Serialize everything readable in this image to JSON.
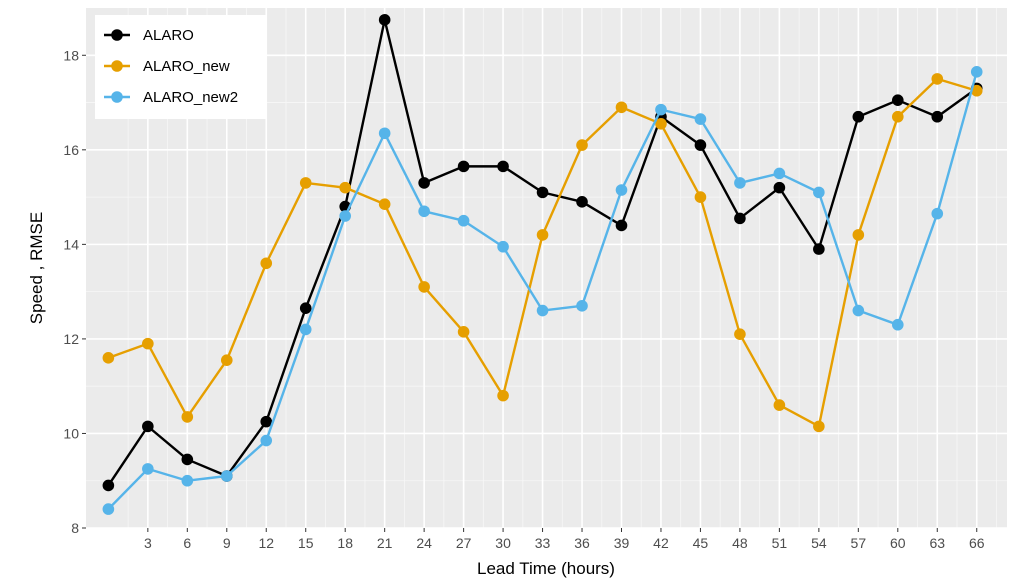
{
  "chart_data": {
    "type": "line",
    "xlabel": "Lead Time (hours)",
    "ylabel": "Speed , RMSE",
    "x_ticks": [
      "3",
      "6",
      "9",
      "12",
      "15",
      "18",
      "21",
      "24",
      "27",
      "30",
      "33",
      "36",
      "39",
      "42",
      "45",
      "48",
      "51",
      "54",
      "57",
      "60",
      "63",
      "66"
    ],
    "y_ticks": [
      8,
      10,
      12,
      14,
      16,
      18
    ],
    "ylim": [
      8,
      19
    ],
    "xlim": [
      -1.7,
      68.3
    ],
    "grid": true,
    "legend_position": "top-left",
    "x": [
      0,
      3,
      6,
      9,
      12,
      15,
      18,
      21,
      24,
      27,
      30,
      33,
      36,
      39,
      42,
      45,
      48,
      51,
      54,
      57,
      60,
      63,
      66
    ],
    "series": [
      {
        "name": "ALARO",
        "color": "#000000",
        "values": [
          8.9,
          10.15,
          9.45,
          9.1,
          10.25,
          12.65,
          14.8,
          18.75,
          15.3,
          15.65,
          15.65,
          15.1,
          14.9,
          14.4,
          16.7,
          16.1,
          14.55,
          15.2,
          13.9,
          16.7,
          17.05,
          16.7,
          17.3
        ]
      },
      {
        "name": "ALARO_new",
        "color": "#E69F00",
        "values": [
          11.6,
          11.9,
          10.35,
          11.55,
          13.6,
          15.3,
          15.2,
          14.85,
          13.1,
          12.15,
          10.8,
          14.2,
          16.1,
          16.9,
          16.55,
          15.0,
          12.1,
          10.6,
          10.15,
          14.2,
          16.7,
          17.5,
          17.25
        ]
      },
      {
        "name": "ALARO_new2",
        "color": "#56B4E9",
        "values": [
          8.4,
          9.25,
          9.0,
          9.1,
          9.85,
          12.2,
          14.6,
          16.35,
          14.7,
          14.5,
          13.95,
          12.6,
          12.7,
          15.15,
          16.85,
          16.65,
          15.3,
          15.5,
          15.1,
          12.6,
          12.3,
          14.65,
          17.65
        ]
      }
    ]
  }
}
